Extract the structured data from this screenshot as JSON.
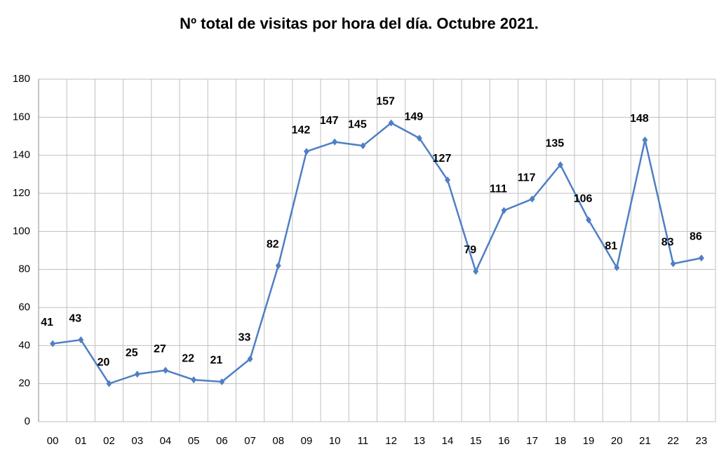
{
  "chart_data": {
    "type": "line",
    "title": "Nº total de visitas por hora del día. Octubre 2021.",
    "categories": [
      "00",
      "01",
      "02",
      "03",
      "04",
      "05",
      "06",
      "07",
      "08",
      "09",
      "10",
      "11",
      "12",
      "13",
      "14",
      "15",
      "16",
      "17",
      "18",
      "19",
      "20",
      "21",
      "22",
      "23"
    ],
    "series": [
      {
        "color": "#4f7fc4",
        "values": [
          41,
          43,
          20,
          25,
          27,
          22,
          21,
          33,
          82,
          142,
          147,
          145,
          157,
          149,
          127,
          79,
          111,
          117,
          135,
          106,
          81,
          148,
          83,
          86
        ]
      }
    ],
    "ylim": [
      0,
      180
    ],
    "yticks": [
      0,
      20,
      40,
      60,
      80,
      100,
      120,
      140,
      160,
      180
    ],
    "grid": true
  }
}
